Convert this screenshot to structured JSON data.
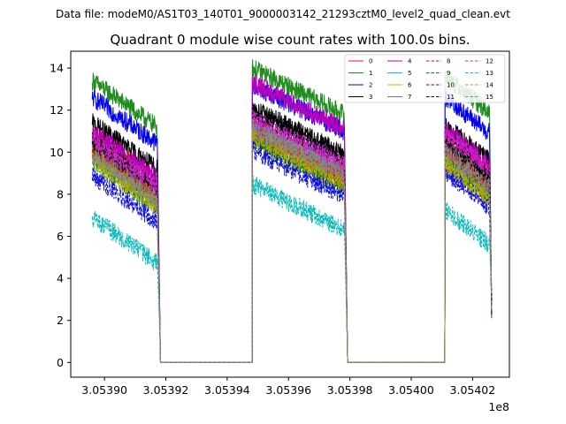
{
  "suptitle": "Data file: modeM0/AS1T03_140T01_9000003142_21293cztM0_level2_quad_clean.evt",
  "chart_data": {
    "type": "line",
    "title": "Quadrant 0 module wise count rates with 100.0s bins.",
    "xlabel": "",
    "ylabel": "",
    "x_offset_label": "1e8",
    "xlim": [
      3.053889,
      3.054032
    ],
    "ylim": [
      -0.7,
      14.8
    ],
    "x_ticks": [
      3.0539,
      3.05392,
      3.05394,
      3.05396,
      3.05398,
      3.054,
      3.05402
    ],
    "x_tick_labels": [
      "3.05390",
      "3.05392",
      "3.05394",
      "3.05396",
      "3.05398",
      "3.05400",
      "3.05402"
    ],
    "y_ticks": [
      0,
      2,
      4,
      6,
      8,
      10,
      12,
      14
    ],
    "y_tick_labels": [
      "0",
      "2",
      "4",
      "6",
      "8",
      "10",
      "12",
      "14"
    ],
    "segments": [
      {
        "x_start": 3.053896,
        "x_end": 3.0539172,
        "drop_x": 3.0539182
      },
      {
        "x_start": 3.0539482,
        "x_end": 3.0539782,
        "drop_x": 3.0539792
      },
      {
        "x_start": 3.054011,
        "x_end": 3.0540255,
        "drop_x": 3.0540262
      }
    ],
    "legend_position": "top-right",
    "series": [
      {
        "name": "0",
        "color": "#e41a1c",
        "dash": "solid",
        "levels": [
          10.9,
          11.3,
          10.8
        ]
      },
      {
        "name": "1",
        "color": "#1e8c1e",
        "dash": "solid",
        "levels": [
          13.4,
          14.0,
          13.6
        ]
      },
      {
        "name": "2",
        "color": "#0000ee",
        "dash": "solid",
        "levels": [
          12.6,
          13.2,
          12.6
        ]
      },
      {
        "name": "3",
        "color": "#000000",
        "dash": "solid",
        "levels": [
          11.4,
          12.1,
          11.3
        ]
      },
      {
        "name": "4",
        "color": "#bb00bb",
        "dash": "solid",
        "levels": [
          11.0,
          13.3,
          11.1
        ]
      },
      {
        "name": "5",
        "color": "#22bbaa",
        "dash": "solid",
        "levels": [
          10.2,
          11.2,
          10.2
        ]
      },
      {
        "name": "6",
        "color": "#bbbb00",
        "dash": "solid",
        "levels": [
          9.9,
          10.9,
          9.8
        ]
      },
      {
        "name": "7",
        "color": "#777777",
        "dash": "solid",
        "levels": [
          10.3,
          11.0,
          10.3
        ]
      },
      {
        "name": "8",
        "color": "#dd1111",
        "dash": "dashed",
        "levels": [
          10.1,
          10.9,
          10.0
        ]
      },
      {
        "name": "9",
        "color": "#117711",
        "dash": "dashed",
        "levels": [
          9.6,
          10.5,
          9.6
        ]
      },
      {
        "name": "10",
        "color": "#1111dd",
        "dash": "dashed",
        "levels": [
          8.9,
          10.1,
          9.1
        ]
      },
      {
        "name": "11",
        "color": "#000000",
        "dash": "dashed",
        "levels": [
          10.5,
          11.9,
          10.5
        ]
      },
      {
        "name": "12",
        "color": "#cc22cc",
        "dash": "dashed",
        "levels": [
          10.6,
          11.6,
          10.9
        ]
      },
      {
        "name": "13",
        "color": "#11bbbb",
        "dash": "dashed",
        "levels": [
          6.9,
          8.5,
          7.3
        ]
      },
      {
        "name": "14",
        "color": "#aaaa00",
        "dash": "dashed",
        "levels": [
          9.6,
          10.7,
          9.5
        ]
      },
      {
        "name": "15",
        "color": "#888888",
        "dash": "dashed",
        "levels": [
          9.9,
          11.1,
          10.0
        ]
      }
    ]
  }
}
